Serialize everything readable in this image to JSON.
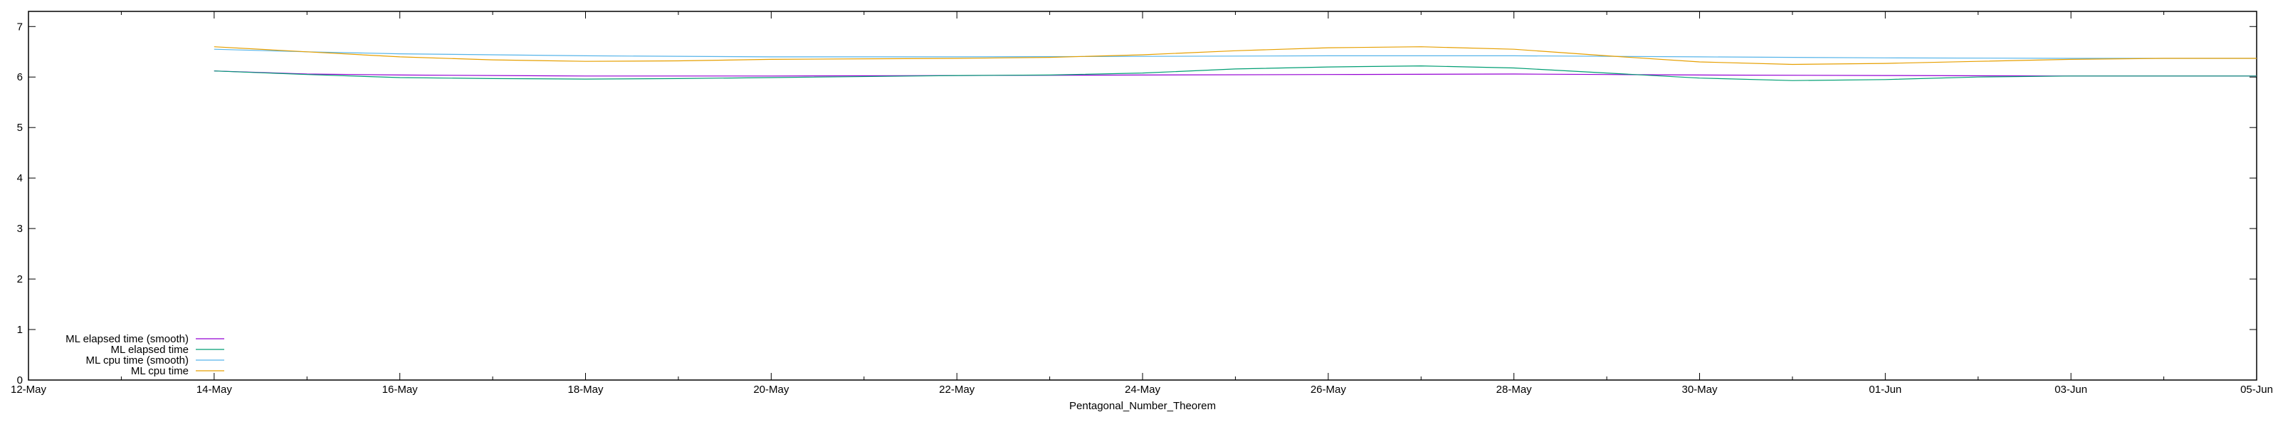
{
  "chart_data": {
    "type": "line",
    "title": "",
    "xlabel": "Pentagonal_Number_Theorem",
    "ylabel": "",
    "x_range": [
      "2020-05-12",
      "2020-06-05"
    ],
    "ylim": [
      0,
      7.3
    ],
    "y_ticks": [
      0,
      1,
      2,
      3,
      4,
      5,
      6,
      7
    ],
    "x_ticks": [
      {
        "date": "2020-05-12",
        "label": "12-May"
      },
      {
        "date": "2020-05-14",
        "label": "14-May"
      },
      {
        "date": "2020-05-16",
        "label": "16-May"
      },
      {
        "date": "2020-05-18",
        "label": "18-May"
      },
      {
        "date": "2020-05-20",
        "label": "20-May"
      },
      {
        "date": "2020-05-22",
        "label": "22-May"
      },
      {
        "date": "2020-05-24",
        "label": "24-May"
      },
      {
        "date": "2020-05-26",
        "label": "26-May"
      },
      {
        "date": "2020-05-28",
        "label": "28-May"
      },
      {
        "date": "2020-05-30",
        "label": "30-May"
      },
      {
        "date": "2020-06-01",
        "label": "01-Jun"
      },
      {
        "date": "2020-06-03",
        "label": "03-Jun"
      },
      {
        "date": "2020-06-05",
        "label": "05-Jun"
      }
    ],
    "grid": false,
    "legend_position": "bottom-left",
    "series": [
      {
        "name": "ML elapsed time (smooth)",
        "color": "#9400d3",
        "points": [
          [
            "2020-05-14",
            6.12
          ],
          [
            "2020-05-15",
            6.06
          ],
          [
            "2020-05-16",
            6.04
          ],
          [
            "2020-05-18",
            6.02
          ],
          [
            "2020-05-20",
            6.02
          ],
          [
            "2020-05-22",
            6.03
          ],
          [
            "2020-05-24",
            6.04
          ],
          [
            "2020-05-26",
            6.05
          ],
          [
            "2020-05-28",
            6.06
          ],
          [
            "2020-05-29",
            6.05
          ],
          [
            "2020-05-30",
            6.04
          ],
          [
            "2020-06-01",
            6.03
          ],
          [
            "2020-06-03",
            6.02
          ],
          [
            "2020-06-05",
            6.02
          ]
        ]
      },
      {
        "name": "ML elapsed time",
        "color": "#009e73",
        "points": [
          [
            "2020-05-14",
            6.12
          ],
          [
            "2020-05-15",
            6.05
          ],
          [
            "2020-05-16",
            5.99
          ],
          [
            "2020-05-17",
            5.97
          ],
          [
            "2020-05-18",
            5.96
          ],
          [
            "2020-05-19",
            5.97
          ],
          [
            "2020-05-20",
            5.99
          ],
          [
            "2020-05-22",
            6.03
          ],
          [
            "2020-05-23",
            6.04
          ],
          [
            "2020-05-24",
            6.08
          ],
          [
            "2020-05-25",
            6.16
          ],
          [
            "2020-05-26",
            6.2
          ],
          [
            "2020-05-27",
            6.22
          ],
          [
            "2020-05-28",
            6.18
          ],
          [
            "2020-05-29",
            6.08
          ],
          [
            "2020-05-30",
            5.98
          ],
          [
            "2020-05-31",
            5.93
          ],
          [
            "2020-06-01",
            5.95
          ],
          [
            "2020-06-02",
            6.0
          ],
          [
            "2020-06-03",
            6.02
          ],
          [
            "2020-06-04",
            6.02
          ],
          [
            "2020-06-05",
            6.02
          ]
        ]
      },
      {
        "name": "ML cpu time (smooth)",
        "color": "#56b4e9",
        "points": [
          [
            "2020-05-14",
            6.55
          ],
          [
            "2020-05-15",
            6.5
          ],
          [
            "2020-05-16",
            6.46
          ],
          [
            "2020-05-18",
            6.42
          ],
          [
            "2020-05-20",
            6.4
          ],
          [
            "2020-05-22",
            6.4
          ],
          [
            "2020-05-24",
            6.41
          ],
          [
            "2020-05-26",
            6.42
          ],
          [
            "2020-05-28",
            6.42
          ],
          [
            "2020-05-30",
            6.4
          ],
          [
            "2020-06-01",
            6.38
          ],
          [
            "2020-06-03",
            6.37
          ],
          [
            "2020-06-05",
            6.37
          ]
        ]
      },
      {
        "name": "ML cpu time",
        "color": "#e69f00",
        "points": [
          [
            "2020-05-14",
            6.6
          ],
          [
            "2020-05-15",
            6.5
          ],
          [
            "2020-05-16",
            6.4
          ],
          [
            "2020-05-17",
            6.34
          ],
          [
            "2020-05-18",
            6.31
          ],
          [
            "2020-05-19",
            6.32
          ],
          [
            "2020-05-20",
            6.35
          ],
          [
            "2020-05-22",
            6.37
          ],
          [
            "2020-05-23",
            6.39
          ],
          [
            "2020-05-24",
            6.44
          ],
          [
            "2020-05-25",
            6.52
          ],
          [
            "2020-05-26",
            6.58
          ],
          [
            "2020-05-27",
            6.6
          ],
          [
            "2020-05-28",
            6.55
          ],
          [
            "2020-05-29",
            6.42
          ],
          [
            "2020-05-30",
            6.3
          ],
          [
            "2020-05-31",
            6.25
          ],
          [
            "2020-06-01",
            6.27
          ],
          [
            "2020-06-02",
            6.31
          ],
          [
            "2020-06-03",
            6.35
          ],
          [
            "2020-06-04",
            6.37
          ],
          [
            "2020-06-05",
            6.37
          ]
        ]
      }
    ]
  }
}
